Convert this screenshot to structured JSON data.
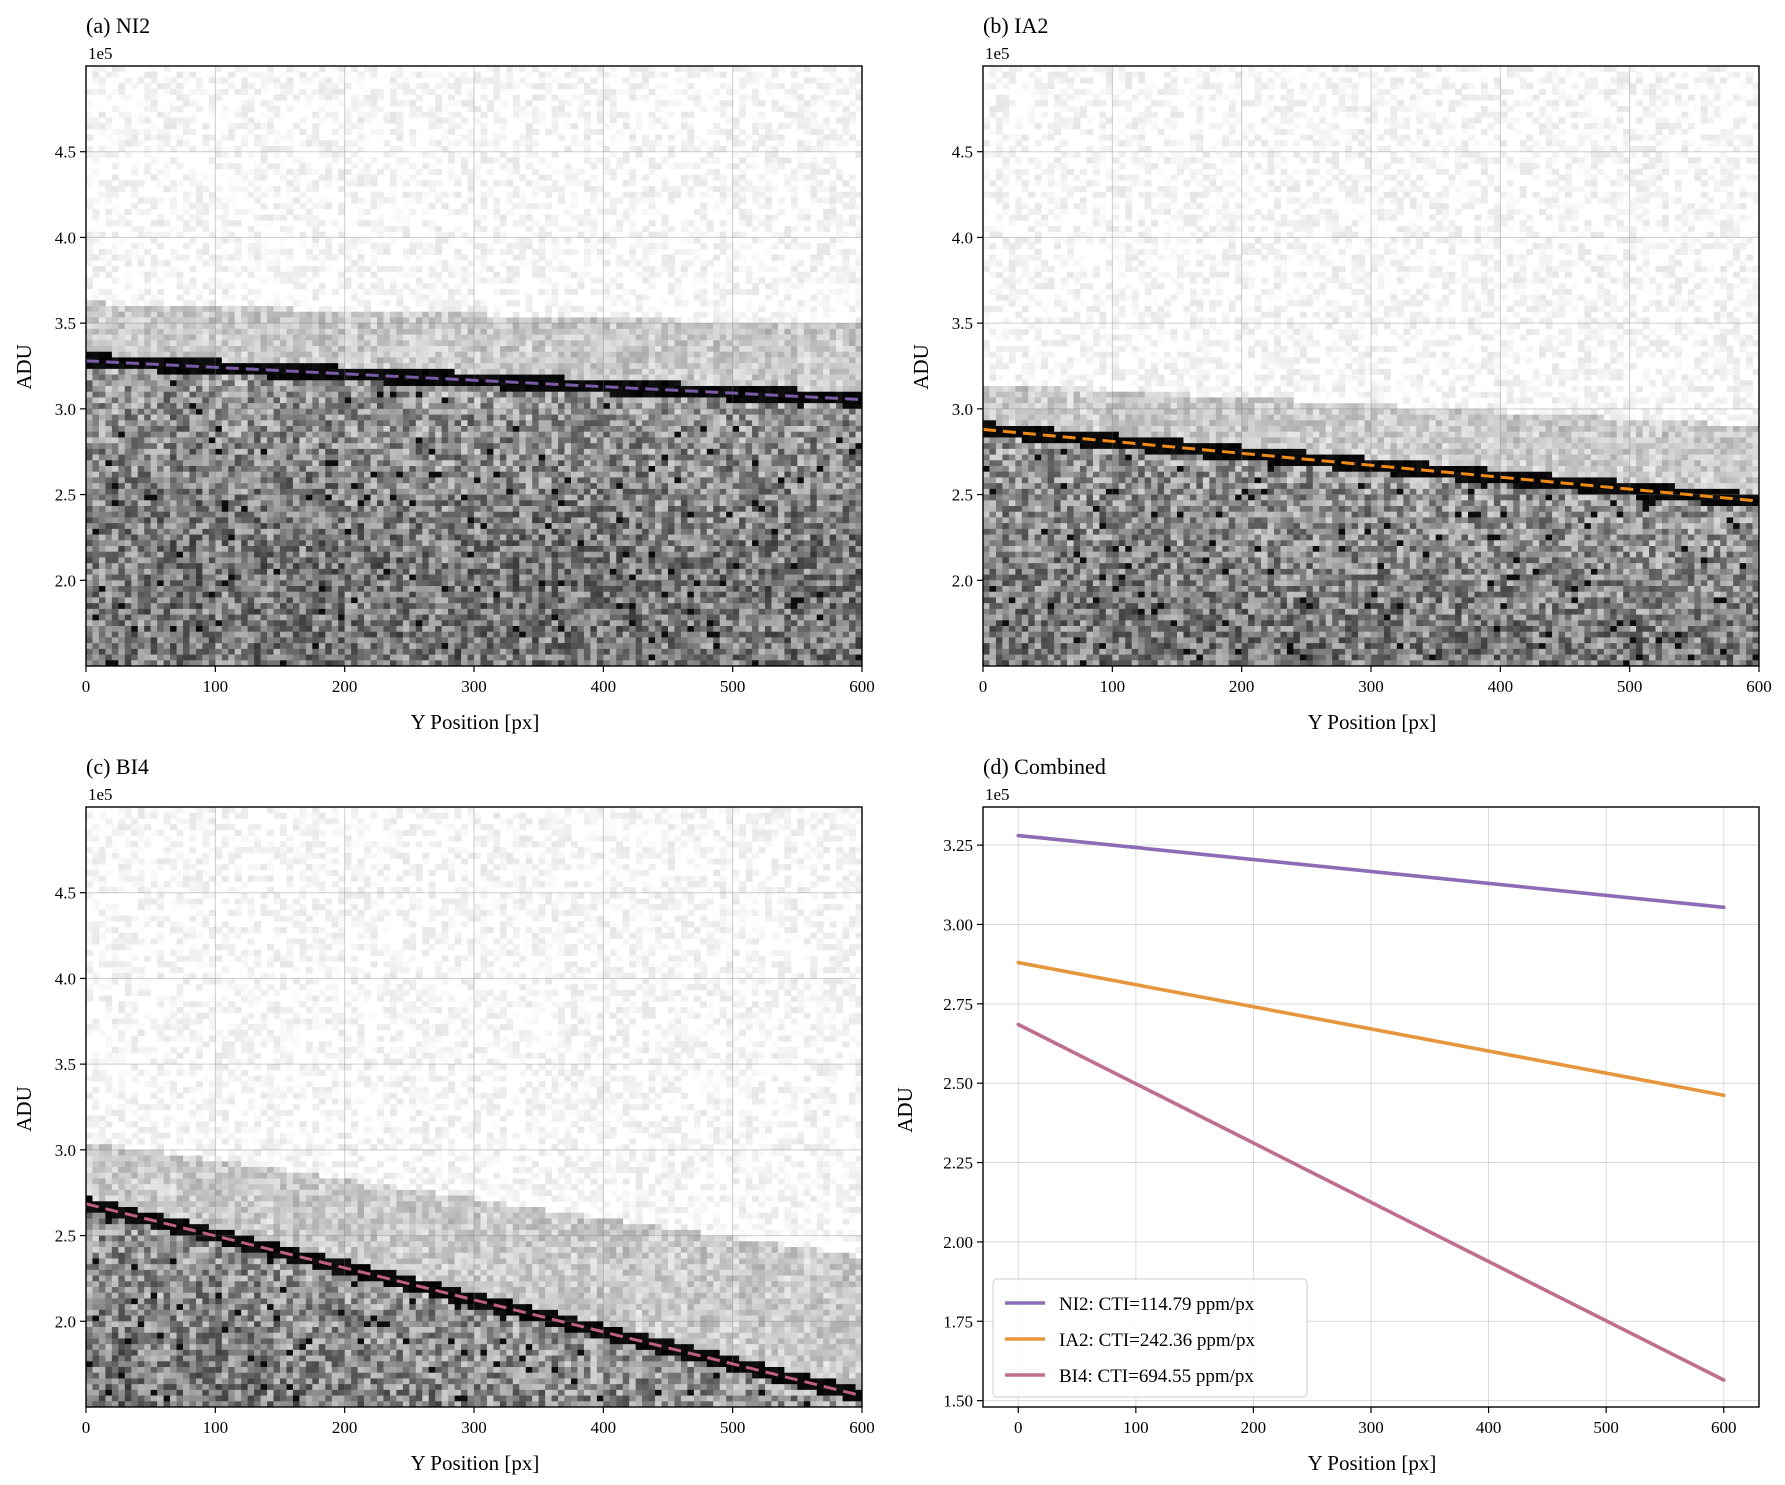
{
  "figure": {
    "panels": [
      {
        "key": "a",
        "title": "(a) NI2"
      },
      {
        "key": "b",
        "title": "(b) IA2"
      },
      {
        "key": "c",
        "title": "(c) BI4"
      },
      {
        "key": "d",
        "title": "(d) Combined"
      }
    ]
  },
  "chart_data": [
    {
      "type": "heatmap",
      "title": "(a) NI2",
      "xlabel": "Y Position [px]",
      "ylabel": "ADU",
      "offset_label": "1e5",
      "xlim": [
        0,
        600
      ],
      "ylim": [
        1.5,
        5.0
      ],
      "xticks": [
        0,
        100,
        200,
        300,
        400,
        500,
        600
      ],
      "xtick_labels": [
        "0",
        "100",
        "200",
        "300",
        "400",
        "500",
        "600"
      ],
      "yticks": [
        2.0,
        2.5,
        3.0,
        3.5,
        4.0,
        4.5
      ],
      "ytick_labels": [
        "2.0",
        "2.5",
        "3.0",
        "3.5",
        "4.0",
        "4.5"
      ],
      "fit_line": {
        "x": [
          0,
          600
        ],
        "y": [
          3.28,
          3.054
        ],
        "color": "#7b5aa6",
        "style": "dashed"
      },
      "halo_top": 3.62
    },
    {
      "type": "heatmap",
      "title": "(b) IA2",
      "xlabel": "Y Position [px]",
      "ylabel": "ADU",
      "offset_label": "1e5",
      "xlim": [
        0,
        600
      ],
      "ylim": [
        1.5,
        5.0
      ],
      "xticks": [
        0,
        100,
        200,
        300,
        400,
        500,
        600
      ],
      "xtick_labels": [
        "0",
        "100",
        "200",
        "300",
        "400",
        "500",
        "600"
      ],
      "yticks": [
        2.0,
        2.5,
        3.0,
        3.5,
        4.0,
        4.5
      ],
      "ytick_labels": [
        "2.0",
        "2.5",
        "3.0",
        "3.5",
        "4.0",
        "4.5"
      ],
      "fit_line": {
        "x": [
          0,
          600
        ],
        "y": [
          2.88,
          2.462
        ],
        "color": "#ef8a17",
        "style": "dashed"
      },
      "halo_top": 3.15
    },
    {
      "type": "heatmap",
      "title": "(c) BI4",
      "xlabel": "Y Position [px]",
      "ylabel": "ADU",
      "offset_label": "1e5",
      "xlim": [
        0,
        600
      ],
      "ylim": [
        1.5,
        5.0
      ],
      "xticks": [
        0,
        100,
        200,
        300,
        400,
        500,
        600
      ],
      "xtick_labels": [
        "0",
        "100",
        "200",
        "300",
        "400",
        "500",
        "600"
      ],
      "yticks": [
        2.0,
        2.5,
        3.0,
        3.5,
        4.0,
        4.5
      ],
      "ytick_labels": [
        "2.0",
        "2.5",
        "3.0",
        "3.5",
        "4.0",
        "4.5"
      ],
      "fit_line": {
        "x": [
          0,
          600
        ],
        "y": [
          2.685,
          1.565
        ],
        "color": "#c0607f",
        "style": "dashed"
      },
      "halo_top": 3.05
    },
    {
      "type": "line",
      "title": "(d) Combined",
      "xlabel": "Y Position [px]",
      "ylabel": "ADU",
      "offset_label": "1e5",
      "xlim": [
        -30,
        630
      ],
      "ylim": [
        1.48,
        3.37
      ],
      "xticks": [
        0,
        100,
        200,
        300,
        400,
        500,
        600
      ],
      "xtick_labels": [
        "0",
        "100",
        "200",
        "300",
        "400",
        "500",
        "600"
      ],
      "yticks": [
        1.5,
        1.75,
        2.0,
        2.25,
        2.5,
        2.75,
        3.0,
        3.25
      ],
      "ytick_labels": [
        "1.50",
        "1.75",
        "2.00",
        "2.25",
        "2.50",
        "2.75",
        "3.00",
        "3.25"
      ],
      "legend_position": "lower-left",
      "series": [
        {
          "name": "NI2: CTI=114.79 ppm/px",
          "x": [
            0,
            600
          ],
          "y": [
            3.28,
            3.054
          ],
          "color": "#8c6bb7"
        },
        {
          "name": "IA2: CTI=242.36 ppm/px",
          "x": [
            0,
            600
          ],
          "y": [
            2.88,
            2.462
          ],
          "color": "#e6963c"
        },
        {
          "name": "BI4: CTI=694.55 ppm/px",
          "x": [
            0,
            600
          ],
          "y": [
            2.685,
            1.565
          ],
          "color": "#c06e8e"
        }
      ]
    }
  ]
}
